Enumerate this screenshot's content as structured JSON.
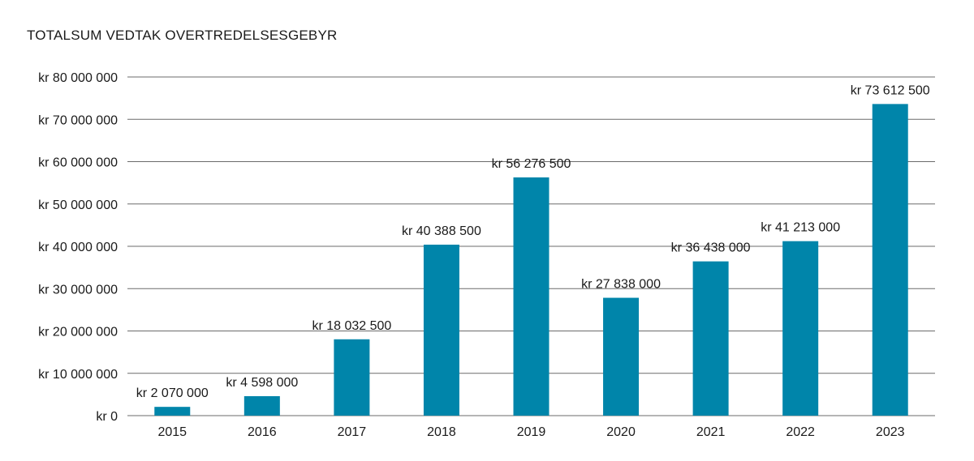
{
  "chart_data": {
    "type": "bar",
    "title": "TOTALSUM VEDTAK OVERTREDELSESGEBYR",
    "xlabel": "",
    "ylabel": "",
    "categories": [
      "2015",
      "2016",
      "2017",
      "2018",
      "2019",
      "2020",
      "2021",
      "2022",
      "2023"
    ],
    "values": [
      2070000,
      4598000,
      18032500,
      40388500,
      56276500,
      27838000,
      36438000,
      41213000,
      73612500
    ],
    "data_labels": [
      "kr 2 070 000",
      "kr 4 598 000",
      "kr 18 032 500",
      "kr 40 388 500",
      "kr 56 276 500",
      "kr 27 838 000",
      "kr 36 438 000",
      "kr 41 213 000",
      "kr 73 612 500"
    ],
    "ylim": [
      0,
      80000000
    ],
    "yticks": [
      0,
      10000000,
      20000000,
      30000000,
      40000000,
      50000000,
      60000000,
      70000000,
      80000000
    ],
    "ytick_labels": [
      "kr 0",
      "kr 10 000 000",
      "kr 20 000 000",
      "kr 30 000 000",
      "kr 40 000 000",
      "kr 50 000 000",
      "kr 60 000 000",
      "kr 70 000 000",
      "kr 80 000 000"
    ],
    "grid": true,
    "colors": {
      "bar": "#0085AA",
      "grid": "#6b6b6b"
    }
  }
}
